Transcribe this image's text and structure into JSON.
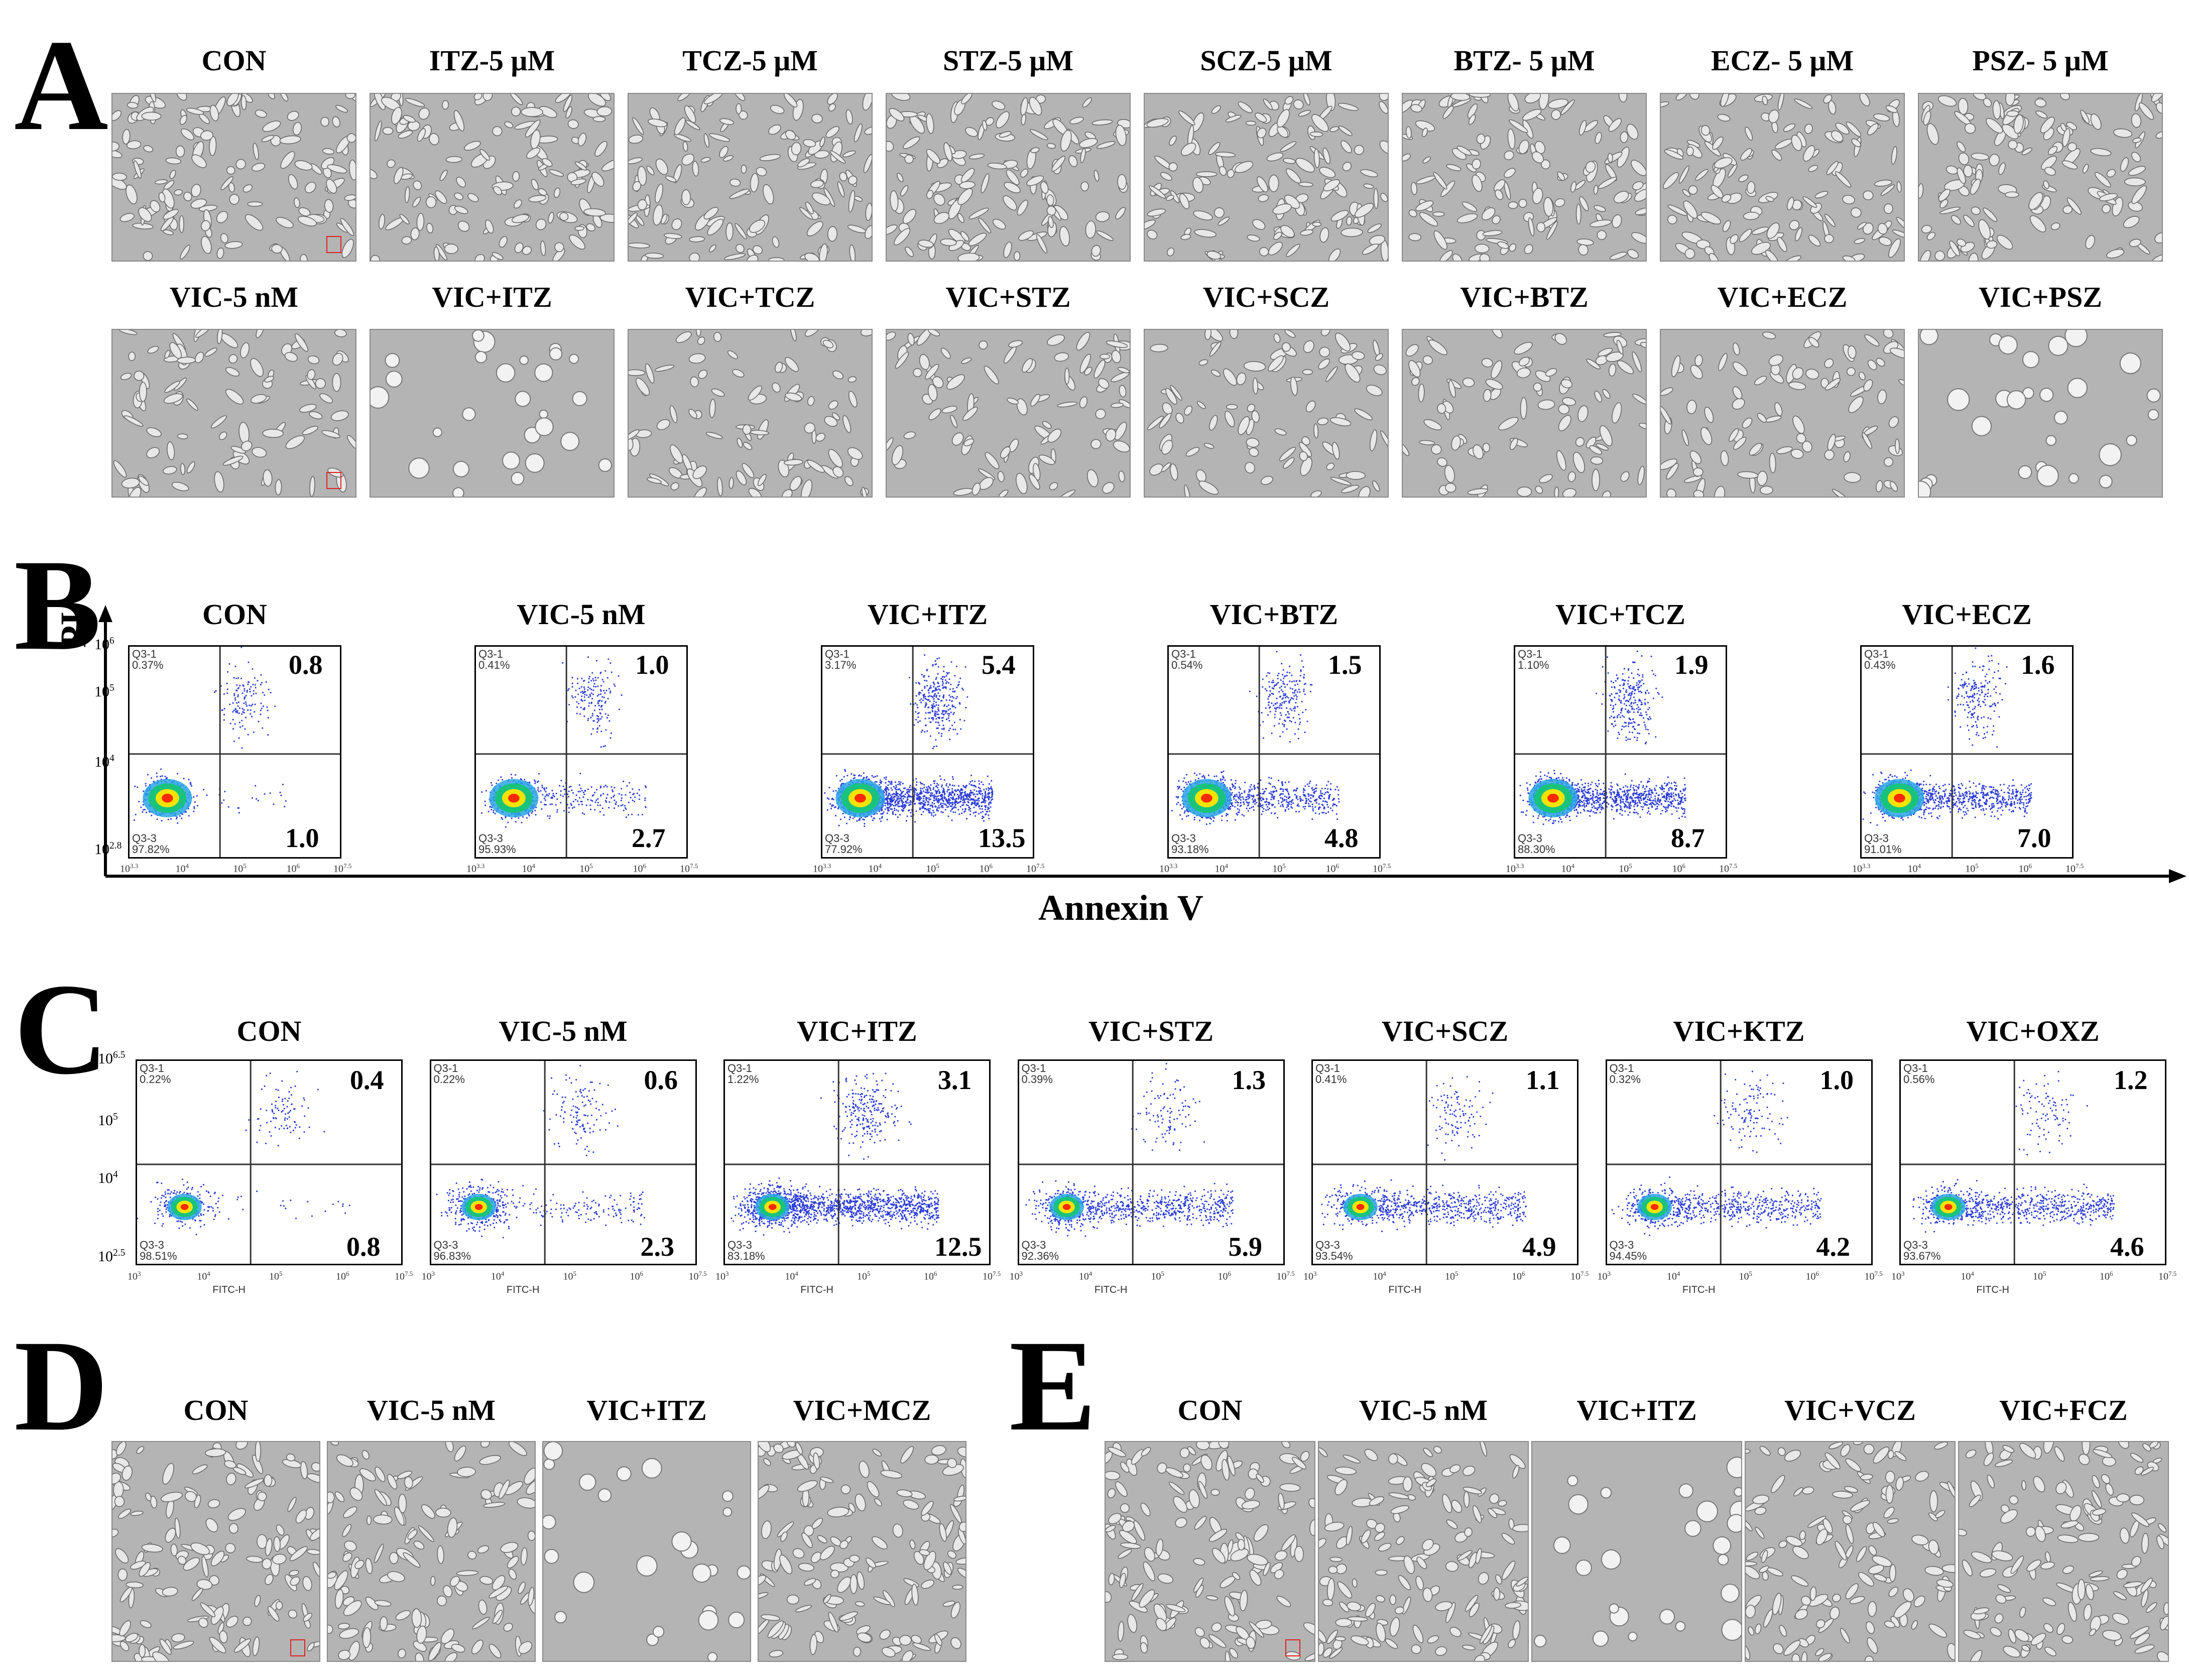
{
  "panels": {
    "A": {
      "letter": "A",
      "row1_labels": [
        "CON",
        "ITZ-5  μM",
        "TCZ-5  μM",
        "STZ-5  μM",
        "SCZ-5  μM",
        "BTZ-  5 μM",
        "ECZ-  5 μM",
        "PSZ-  5 μM"
      ],
      "row2_labels": [
        "VIC-5  nM",
        "VIC+ITZ",
        "VIC+TCZ",
        "VIC+STZ",
        "VIC+SCZ",
        "VIC+BTZ",
        "VIC+ECZ",
        "VIC+PSZ"
      ]
    },
    "B": {
      "letter": "B",
      "y_axis_title": "PI",
      "x_axis_title": "Annexin V",
      "y_ticks": [
        "10",
        "10",
        "10",
        "10"
      ],
      "y_tick_exps": [
        "6",
        "5",
        "4",
        "2.8"
      ],
      "x_ticks": [
        "10",
        "10",
        "10",
        "10",
        "10"
      ],
      "x_tick_exps": [
        "3.3",
        "4",
        "5",
        "6",
        "7.5"
      ],
      "plots": [
        {
          "label": "CON",
          "ul": "0.37%",
          "ll": "97.82%",
          "ur": "0.8",
          "lr": "1.0"
        },
        {
          "label": "VIC-5  nM",
          "ul": "0.41%",
          "ll": "95.93%",
          "ur": "1.0",
          "lr": "2.7"
        },
        {
          "label": "VIC+ITZ",
          "ul": "3.17%",
          "ll": "77.92%",
          "ur": "5.4",
          "lr": "13.5"
        },
        {
          "label": "VIC+BTZ",
          "ul": "0.54%",
          "ll": "93.18%",
          "ur": "1.5",
          "lr": "4.8"
        },
        {
          "label": "VIC+TCZ",
          "ul": "1.10%",
          "ll": "88.30%",
          "ur": "1.9",
          "lr": "8.7"
        },
        {
          "label": "VIC+ECZ",
          "ul": "0.43%",
          "ll": "91.01%",
          "ur": "1.6",
          "lr": "7.0"
        }
      ],
      "q_ul_name": "Q3-1",
      "q_ll_name": "Q3-3"
    },
    "C": {
      "letter": "C",
      "x_axis_label": "FITC-H",
      "y_ticks": [
        "10",
        "10",
        "10",
        "10"
      ],
      "y_tick_exps": [
        "6.5",
        "5",
        "4",
        "2.5"
      ],
      "x_ticks": [
        "10",
        "10",
        "10",
        "10",
        "10"
      ],
      "x_tick_exps": [
        "3",
        "4",
        "5",
        "6",
        "7.5"
      ],
      "plots": [
        {
          "label": "CON",
          "ul": "0.22%",
          "ll": "98.51%",
          "ur": "0.4",
          "lr": "0.8"
        },
        {
          "label": "VIC-5  nM",
          "ul": "0.22%",
          "ll": "96.83%",
          "ur": "0.6",
          "lr": "2.3"
        },
        {
          "label": "VIC+ITZ",
          "ul": "1.22%",
          "ll": "83.18%",
          "ur": "3.1",
          "lr": "12.5"
        },
        {
          "label": "VIC+STZ",
          "ul": "0.39%",
          "ll": "92.36%",
          "ur": "1.3",
          "lr": "5.9"
        },
        {
          "label": "VIC+SCZ",
          "ul": "0.41%",
          "ll": "93.54%",
          "ur": "1.1",
          "lr": "4.9"
        },
        {
          "label": "VIC+KTZ",
          "ul": "0.32%",
          "ll": "94.45%",
          "ur": "1.0",
          "lr": "4.2"
        },
        {
          "label": "VIC+OXZ",
          "ul": "0.56%",
          "ll": "93.67%",
          "ur": "1.2",
          "lr": "4.6"
        }
      ],
      "q_ul_name": "Q3-1",
      "q_ll_name": "Q3-3"
    },
    "D": {
      "letter": "D",
      "labels": [
        "CON",
        "VIC-5  nM",
        "VIC+ITZ",
        "VIC+MCZ"
      ]
    },
    "E": {
      "letter": "E",
      "labels": [
        "CON",
        "VIC-5  nM",
        "VIC+ITZ",
        "VIC+VCZ",
        "VIC+FCZ"
      ]
    }
  },
  "colors": {
    "micro_bg": "#b4b4b4",
    "micro_cell": "#e8e8e8",
    "flow_dot": "#2b3cd6",
    "flow_hot": "#ff2a00",
    "flow_warm": "#f5e400",
    "flow_mid": "#19c37d"
  }
}
